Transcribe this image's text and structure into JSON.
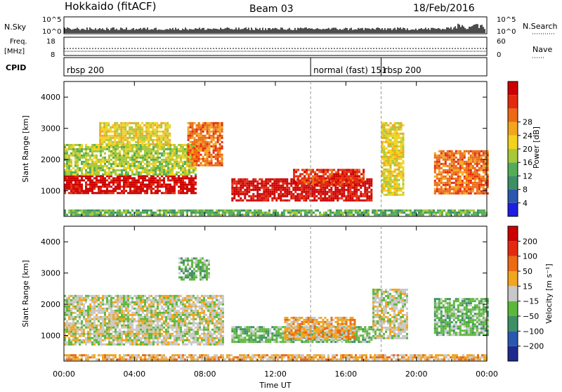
{
  "header": {
    "station": "Hokkaido (fitACF)",
    "beam": "Beam 03",
    "date": "18/Feb/2016"
  },
  "panels": {
    "nsky": {
      "label": "N.Sky",
      "top": "10^5",
      "bottom": "10^0",
      "right_label": "N.Search",
      "right_top": "10^5",
      "right_bottom": "10^0"
    },
    "freq": {
      "label_line1": "Freq.",
      "label_line2": "[MHz]",
      "top": "18",
      "bottom": "8",
      "right_label": "Nave",
      "right_top": "60",
      "right_bottom": "0"
    },
    "cpid": {
      "label": "CPID",
      "segments": [
        {
          "text": "rbsp 200",
          "start_hour": 0
        },
        {
          "text": "normal (fast) 151",
          "start_hour": 14.0
        },
        {
          "text": "rbsp 200",
          "start_hour": 18.0
        }
      ]
    }
  },
  "chart_data": [
    {
      "type": "heatmap",
      "title": "",
      "xlabel": "Time UT",
      "ylabel": "Slant Range [km]",
      "xlim": [
        0,
        24
      ],
      "ylim": [
        180,
        4500
      ],
      "x_ticks": [
        "00:00",
        "04:00",
        "08:00",
        "12:00",
        "16:00",
        "20:00",
        "00:00"
      ],
      "y_ticks": [
        1000,
        2000,
        3000,
        4000
      ],
      "colorbar": {
        "label": "Power [dB]",
        "ticks": [
          4,
          8,
          12,
          16,
          20,
          24,
          28
        ],
        "colors": [
          "#1e1ee0",
          "#2a58b0",
          "#3d8f66",
          "#54ad56",
          "#a8c83a",
          "#f2d21e",
          "#f2a51e",
          "#ec6a14",
          "#e32a0f",
          "#cc0000"
        ]
      },
      "regions": [
        {
          "t0": 0.0,
          "t1": 7.5,
          "r0": 900,
          "r1": 1500,
          "level": 9
        },
        {
          "t0": 0.0,
          "t1": 7.5,
          "r0": 1500,
          "r1": 2500,
          "level": 4
        },
        {
          "t0": 2.0,
          "t1": 6.0,
          "r0": 2500,
          "r1": 3200,
          "level": 5
        },
        {
          "t0": 7.0,
          "t1": 9.0,
          "r0": 1800,
          "r1": 3200,
          "level": 7
        },
        {
          "t0": 9.5,
          "t1": 17.5,
          "r0": 700,
          "r1": 1400,
          "level": 9
        },
        {
          "t0": 13.0,
          "t1": 17.0,
          "r0": 1200,
          "r1": 1700,
          "level": 8
        },
        {
          "t0": 18.0,
          "t1": 19.2,
          "r0": 900,
          "r1": 3200,
          "level": 5
        },
        {
          "t0": 21.0,
          "t1": 24.0,
          "r0": 900,
          "r1": 2300,
          "level": 7
        },
        {
          "t0": 0.0,
          "t1": 24.0,
          "r0": 200,
          "r1": 400,
          "level": 3
        }
      ]
    },
    {
      "type": "heatmap",
      "title": "",
      "xlabel": "Time UT",
      "ylabel": "Slant Range [km]",
      "xlim": [
        0,
        24
      ],
      "ylim": [
        180,
        4500
      ],
      "x_ticks": [
        "00:00",
        "04:00",
        "08:00",
        "12:00",
        "16:00",
        "20:00",
        "00:00"
      ],
      "y_ticks": [
        1000,
        2000,
        3000,
        4000
      ],
      "colorbar": {
        "label": "Velocity [m s⁻¹]",
        "ticks": [
          200,
          100,
          50,
          15,
          -15,
          -50,
          -100,
          -200
        ],
        "colors": [
          "#1e2a8c",
          "#2a58b0",
          "#3d8f66",
          "#5cb83a",
          "#c8c8c8",
          "#f2a51e",
          "#ec6a14",
          "#e32a0f",
          "#cc0000"
        ]
      },
      "regions": [
        {
          "t0": 0.0,
          "t1": 9.0,
          "r0": 700,
          "r1": 2300,
          "level": 4
        },
        {
          "t0": 6.5,
          "t1": 8.2,
          "r0": 2800,
          "r1": 3500,
          "level": 3
        },
        {
          "t0": 9.5,
          "t1": 17.5,
          "r0": 800,
          "r1": 1300,
          "level": 3
        },
        {
          "t0": 12.5,
          "t1": 16.5,
          "r0": 900,
          "r1": 1600,
          "level": 5
        },
        {
          "t0": 17.5,
          "t1": 19.5,
          "r0": 900,
          "r1": 2500,
          "level": 4
        },
        {
          "t0": 21.0,
          "t1": 24.0,
          "r0": 1000,
          "r1": 2200,
          "level": 3
        },
        {
          "t0": 0.0,
          "t1": 24.0,
          "r0": 200,
          "r1": 400,
          "level": 5
        }
      ]
    }
  ]
}
